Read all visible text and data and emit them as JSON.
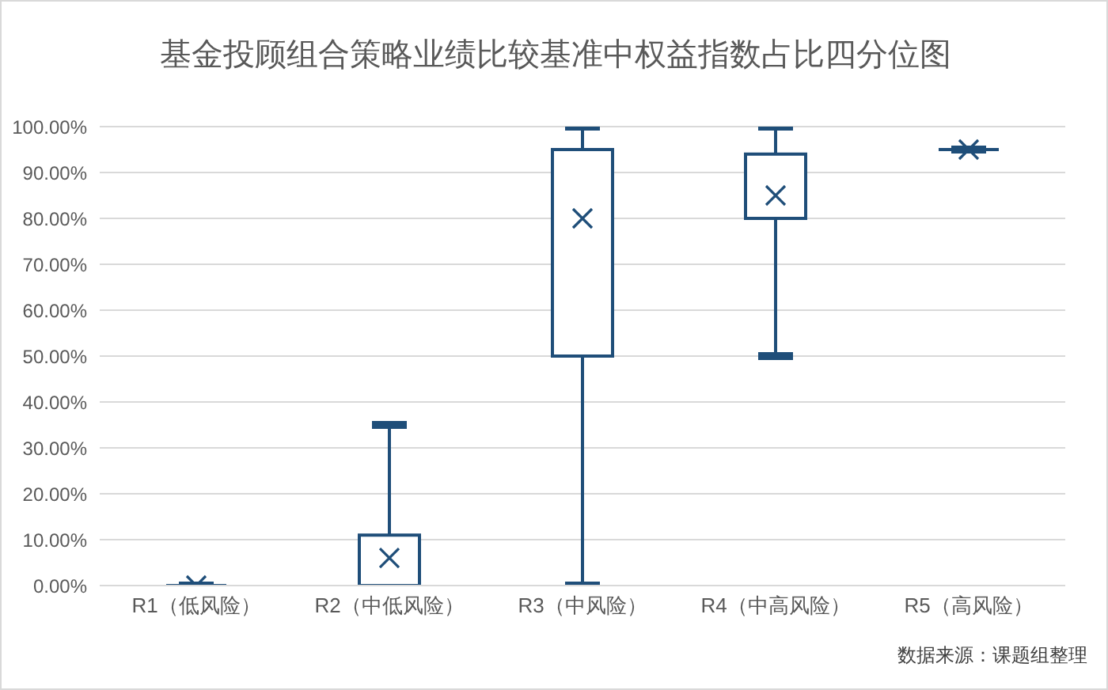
{
  "chart_data": {
    "type": "box",
    "title": "基金投顾组合策略业绩比较基准中权益指数占比四分位图",
    "categories": [
      "R1（低风险）",
      "R2（中低风险）",
      "R3（中风险）",
      "R4（中高风险）",
      "R5（高风险）"
    ],
    "boxes": [
      {
        "low": 0,
        "q1": 0,
        "median": 0,
        "q3": 0,
        "high": 0,
        "mean": 0
      },
      {
        "low": 0,
        "q1": 0,
        "median": 0,
        "q3": 11,
        "high": 35,
        "mean": 6
      },
      {
        "low": 0,
        "q1": 50,
        "median": 95,
        "q3": 95,
        "high": 100,
        "mean": 80
      },
      {
        "low": 50,
        "q1": 80,
        "median": 80,
        "q3": 94,
        "high": 100,
        "mean": 85
      },
      {
        "low": 95,
        "q1": 95,
        "median": 95,
        "q3": 95,
        "high": 95,
        "mean": 95
      }
    ],
    "color": "#1f4e79",
    "marker": "cross",
    "grid": "y",
    "ylim": [
      0,
      100
    ],
    "yticks": [
      {
        "value": 0,
        "label": "0.00%"
      },
      {
        "value": 10,
        "label": "10.00%"
      },
      {
        "value": 20,
        "label": "20.00%"
      },
      {
        "value": 30,
        "label": "30.00%"
      },
      {
        "value": 40,
        "label": "40.00%"
      },
      {
        "value": 50,
        "label": "50.00%"
      },
      {
        "value": 60,
        "label": "60.00%"
      },
      {
        "value": 70,
        "label": "70.00%"
      },
      {
        "value": 80,
        "label": "80.00%"
      },
      {
        "value": 90,
        "label": "90.00%"
      },
      {
        "value": 100,
        "label": "100.00%"
      }
    ],
    "annotations": [
      "数据来源：课题组整理"
    ]
  }
}
